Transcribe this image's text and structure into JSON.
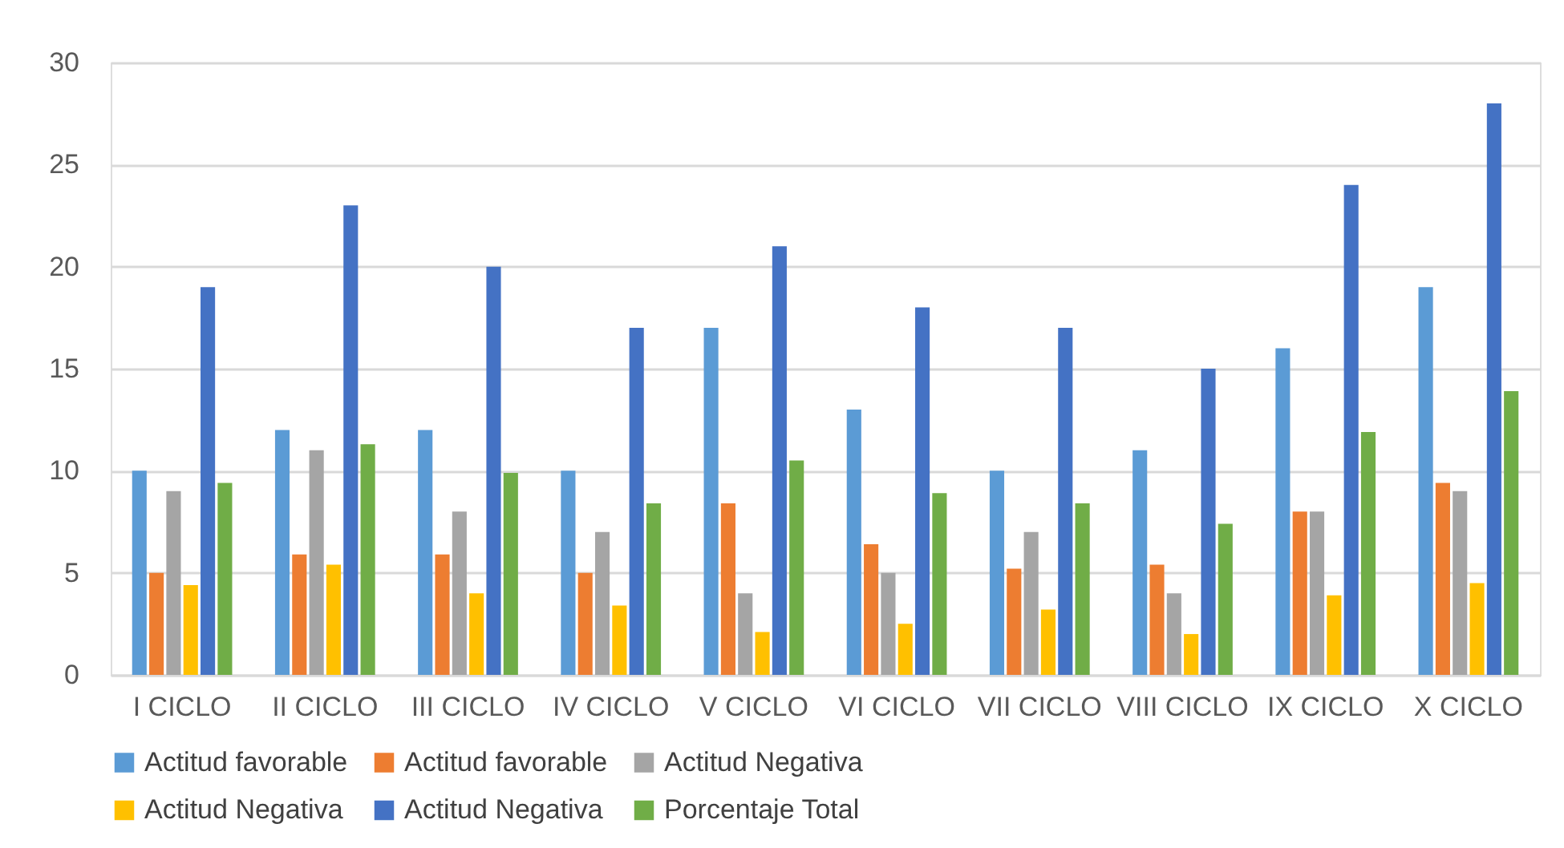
{
  "chart_data": {
    "type": "bar",
    "categories": [
      "I CICLO",
      "II CICLO",
      "III CICLO",
      "IV CICLO",
      "V CICLO",
      "VI CICLO",
      "VII CICLO",
      "VIII CICLO",
      "IX CICLO",
      "X CICLO"
    ],
    "series": [
      {
        "name": "Actitud favorable",
        "color": "#5b9bd5",
        "values": [
          10,
          12,
          12,
          10,
          17,
          13,
          10,
          11,
          16,
          19
        ]
      },
      {
        "name": "Actitud favorable",
        "color": "#ed7d31",
        "values": [
          5,
          5.9,
          5.9,
          5,
          8.4,
          6.4,
          5.2,
          5.4,
          8,
          9.4
        ]
      },
      {
        "name": "Actitud Negativa",
        "color": "#a5a5a5",
        "values": [
          9,
          11,
          8,
          7,
          4,
          5,
          7,
          4,
          8,
          9
        ]
      },
      {
        "name": "Actitud Negativa",
        "color": "#ffc000",
        "values": [
          4.4,
          5.4,
          4,
          3.4,
          2.1,
          2.5,
          3.2,
          2,
          3.9,
          4.5
        ]
      },
      {
        "name": "Actitud Negativa",
        "color": "#4472c4",
        "values": [
          19,
          23,
          20,
          17,
          21,
          18,
          17,
          15,
          24,
          28
        ]
      },
      {
        "name": "Porcentaje Total",
        "color": "#70ad47",
        "values": [
          9.4,
          11.3,
          9.9,
          8.4,
          10.5,
          8.9,
          8.4,
          7.4,
          11.9,
          13.9
        ]
      }
    ],
    "ylim": [
      0,
      30
    ],
    "yticks": [
      0,
      5,
      10,
      15,
      20,
      25,
      30
    ],
    "grid": "y",
    "legend": "bottom"
  }
}
